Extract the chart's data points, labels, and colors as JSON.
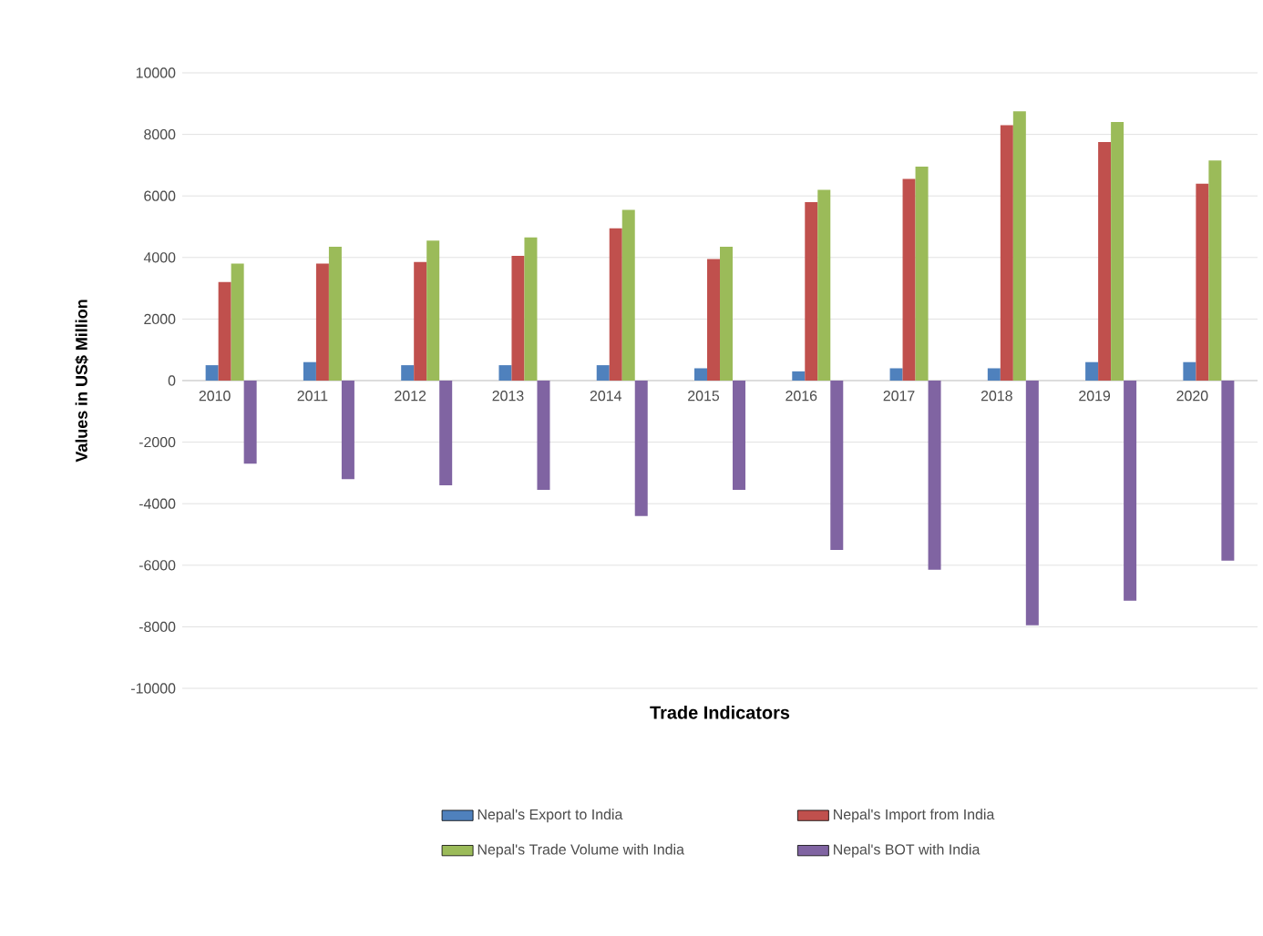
{
  "chart_data": {
    "type": "bar",
    "xlabel": "Trade Indicators",
    "ylabel": "Values in US$ Million",
    "categories": [
      "2010",
      "2011",
      "2012",
      "2013",
      "2014",
      "2015",
      "2016",
      "2017",
      "2018",
      "2019",
      "2020"
    ],
    "series": [
      {
        "name": "Nepal's Export to India",
        "color": "#4f81bd",
        "values": [
          500,
          600,
          500,
          500,
          500,
          400,
          300,
          400,
          400,
          600,
          600
        ]
      },
      {
        "name": "Nepal's Import from India",
        "color": "#c0504d",
        "values": [
          3200,
          3800,
          3850,
          4050,
          4950,
          3950,
          5800,
          6550,
          8300,
          7750,
          6400
        ]
      },
      {
        "name": "Nepal's Trade Volume with India",
        "color": "#9bbb59",
        "values": [
          3800,
          4350,
          4550,
          4650,
          5550,
          4350,
          6200,
          6950,
          8750,
          8400,
          7150
        ]
      },
      {
        "name": "Nepal's BOT with India",
        "color": "#8064a2",
        "values": [
          -2700,
          -3200,
          -3400,
          -3550,
          -4400,
          -3550,
          -5500,
          -6150,
          -7950,
          -7150,
          -5850
        ]
      }
    ],
    "ylim": [
      -10000,
      10000
    ],
    "yticks": [
      -10000,
      -8000,
      -6000,
      -4000,
      -2000,
      0,
      2000,
      4000,
      6000,
      8000,
      10000
    ],
    "grid": "y",
    "legend": "bottom"
  }
}
